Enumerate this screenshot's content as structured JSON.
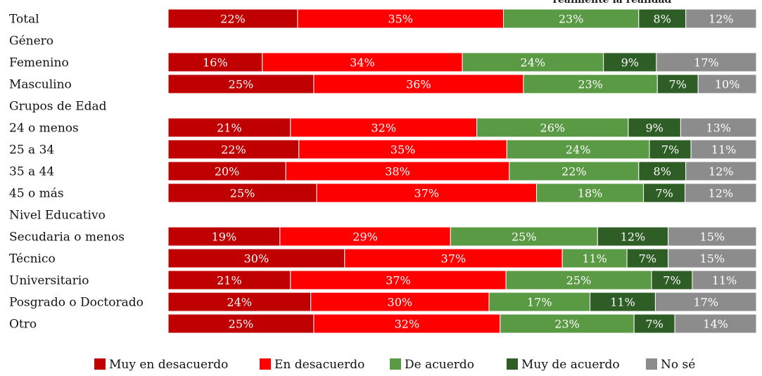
{
  "chart_data": {
    "type": "bar",
    "orientation": "horizontal",
    "stacked": "100%",
    "title_fragment": "realmente la realidad",
    "rows": [
      {
        "label": "Total",
        "values": [
          22,
          35,
          23,
          8,
          12
        ]
      },
      {
        "label": "Género",
        "header": true
      },
      {
        "label": "Femenino",
        "values": [
          16,
          34,
          24,
          9,
          17
        ]
      },
      {
        "label": "Masculino",
        "values": [
          25,
          36,
          23,
          7,
          10
        ]
      },
      {
        "label": "Grupos de Edad",
        "header": true
      },
      {
        "label": "24 o menos",
        "values": [
          21,
          32,
          26,
          9,
          13
        ]
      },
      {
        "label": "25 a 34",
        "values": [
          22,
          35,
          24,
          7,
          11
        ]
      },
      {
        "label": "35 a 44",
        "values": [
          20,
          38,
          22,
          8,
          12
        ]
      },
      {
        "label": "45 o más",
        "values": [
          25,
          37,
          18,
          7,
          12
        ]
      },
      {
        "label": "Nivel Educativo",
        "header": true
      },
      {
        "label": "Secudaria o menos",
        "values": [
          19,
          29,
          25,
          12,
          15
        ]
      },
      {
        "label": "Técnico",
        "values": [
          30,
          37,
          11,
          7,
          15
        ]
      },
      {
        "label": "Universitario",
        "values": [
          21,
          37,
          25,
          7,
          11
        ]
      },
      {
        "label": "Posgrado o Doctorado",
        "values": [
          24,
          30,
          17,
          11,
          17
        ]
      },
      {
        "label": "Otro",
        "values": [
          25,
          32,
          23,
          7,
          14
        ]
      }
    ],
    "series": [
      {
        "name": "Muy en desacuerdo",
        "color": "#c00000"
      },
      {
        "name": "En desacuerdo",
        "color": "#ff0000"
      },
      {
        "name": "De acuerdo",
        "color": "#5b9a45"
      },
      {
        "name": "Muy de acuerdo",
        "color": "#2e5e25"
      },
      {
        "name": "No sé",
        "color": "#8c8c8c"
      }
    ],
    "value_suffix": "%",
    "legend_position": "bottom",
    "grid": false
  }
}
